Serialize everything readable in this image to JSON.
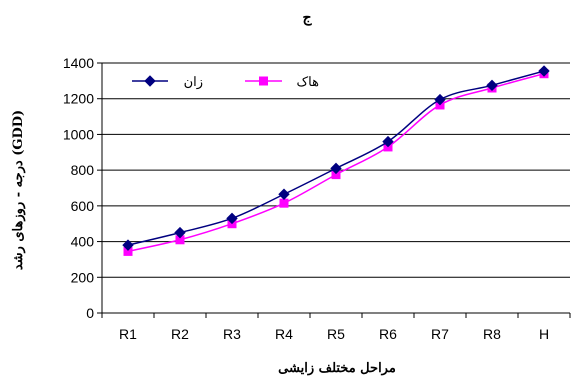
{
  "chart_data": {
    "type": "line",
    "title": "ج",
    "xlabel": "مراحل مختلف زایشی",
    "ylabel": "درجه - روزهای رشد (GDD)",
    "categories": [
      "R1",
      "R2",
      "R3",
      "R4",
      "R5",
      "R6",
      "R7",
      "R8",
      "H"
    ],
    "ylim": [
      0,
      1400
    ],
    "yticks": [
      0,
      200,
      400,
      600,
      800,
      1000,
      1200,
      1400
    ],
    "grid": true,
    "legend_position": "top-left",
    "series": [
      {
        "name": "زان",
        "values": [
          380,
          450,
          530,
          665,
          810,
          960,
          1195,
          1275,
          1355
        ],
        "color": "#000080",
        "marker": "diamond"
      },
      {
        "name": "هاک",
        "values": [
          345,
          410,
          500,
          615,
          775,
          930,
          1165,
          1260,
          1340
        ],
        "color": "#ff00ff",
        "marker": "square"
      }
    ]
  }
}
